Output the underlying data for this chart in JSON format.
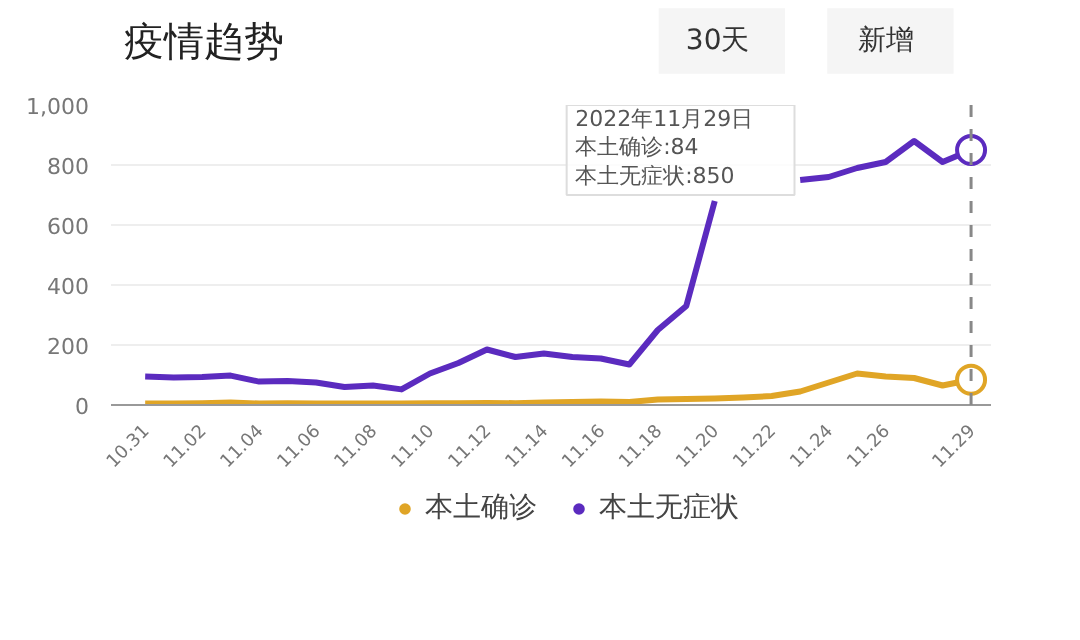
{
  "chart_data": {
    "type": "line",
    "title": "疫情趋势",
    "annotations": [
      "30天",
      "新增",
      "2022年11月29日",
      "本土确诊:84",
      "本土无症状:850"
    ],
    "categories": [
      "10.31",
      null,
      "11.02",
      null,
      "11.04",
      null,
      "11.06",
      null,
      "11.08",
      null,
      "11.10",
      null,
      "11.12",
      null,
      "11.14",
      null,
      "11.16",
      null,
      "11.18",
      null,
      "11.20",
      null,
      "11.22",
      null,
      "11.24",
      null,
      "11.26",
      null,
      null,
      "11.29"
    ],
    "series": [
      {
        "name": "本土确诊",
        "color": "#e0a526",
        "values": [
          5,
          5,
          6,
          8,
          5,
          6,
          5,
          5,
          5,
          5,
          6,
          6,
          7,
          6,
          8,
          10,
          12,
          10,
          18,
          20,
          22,
          25,
          30,
          45,
          75,
          105,
          95,
          90,
          65,
          84
        ]
      },
      {
        "name": "本土无症状",
        "color": "#5b2bbf",
        "values": [
          95,
          92,
          93,
          98,
          78,
          80,
          75,
          60,
          65,
          52,
          105,
          140,
          185,
          160,
          172,
          160,
          155,
          135,
          250,
          330,
          680,
          null,
          null,
          750,
          760,
          790,
          810,
          880,
          810,
          850
        ]
      }
    ],
    "ylim": [
      0,
      1000
    ],
    "yticks": [
      0,
      200,
      400,
      600,
      800,
      {
        "value": 1000,
        "label": "1,000"
      }
    ],
    "ref_lines": [
      {
        "axis": "x",
        "value": "11.29",
        "color": "#888888",
        "line_style": "dashed"
      }
    ],
    "grid": "y",
    "legend": "bottom",
    "line_style": "solid"
  }
}
